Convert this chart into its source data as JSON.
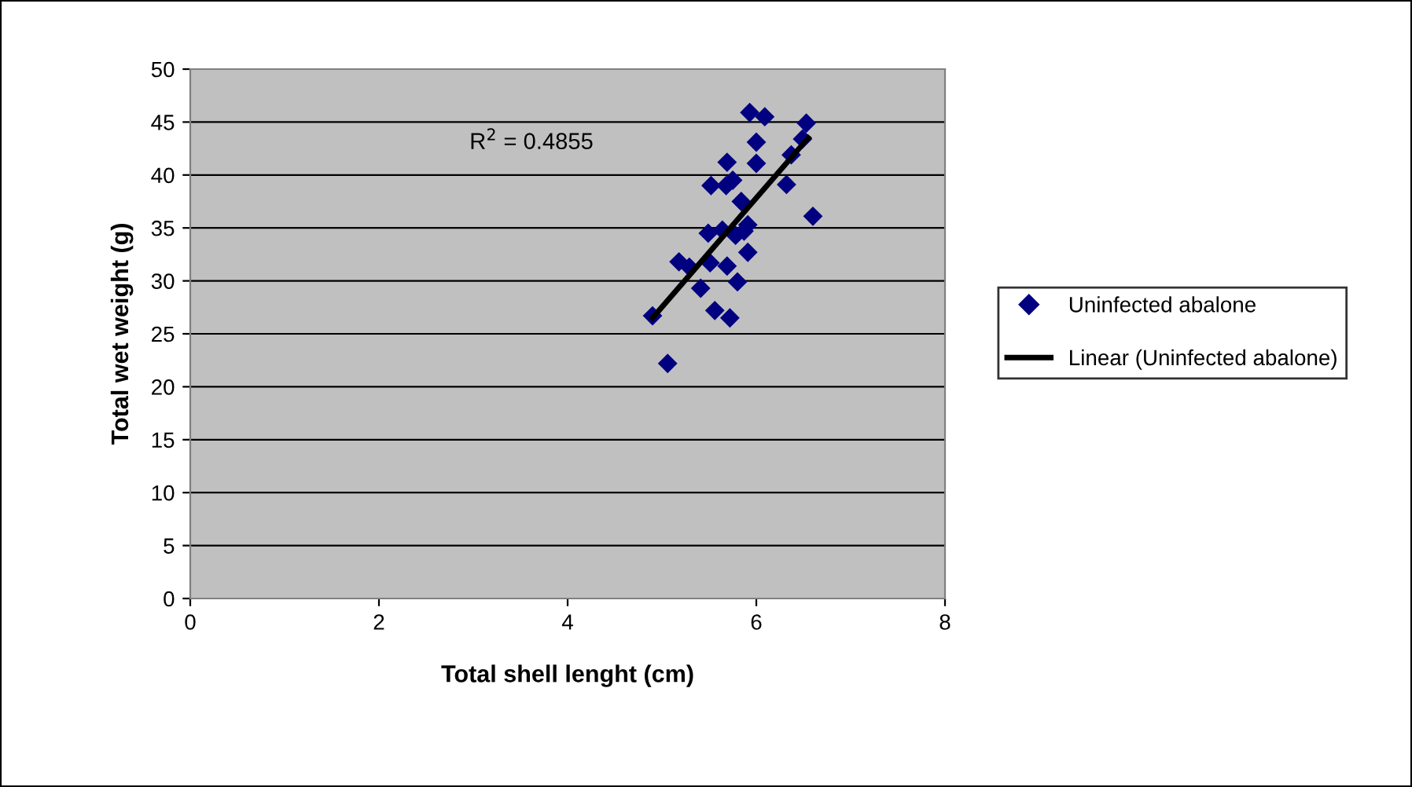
{
  "chart_data": {
    "type": "scatter",
    "xlabel": "Total shell lenght (cm)",
    "ylabel": "Total wet weight (g)",
    "xlim": [
      0,
      8
    ],
    "xticks": [
      0,
      2,
      4,
      6,
      8
    ],
    "ylim": [
      0,
      50
    ],
    "yticks": [
      0,
      5,
      10,
      15,
      20,
      25,
      30,
      35,
      40,
      45,
      50
    ],
    "grid": "y",
    "legend": "right",
    "marker": "diamond",
    "annotations": [
      "R$^{2}$ = 0.4855"
    ],
    "series": [
      {
        "name": "Uninfected abalone",
        "color": "#000080",
        "x": [
          4.9,
          5.06,
          5.18,
          5.29,
          5.41,
          5.51,
          5.56,
          5.72,
          5.69,
          5.8,
          5.91,
          5.49,
          5.64,
          5.78,
          5.91,
          5.87,
          5.84,
          5.52,
          5.68,
          5.75,
          5.69,
          6.0,
          6.0,
          5.93,
          6.09,
          6.32,
          6.37,
          6.49,
          6.53,
          6.6
        ],
        "values": [
          26.7,
          22.2,
          31.8,
          31.3,
          29.3,
          31.7,
          27.2,
          26.5,
          31.4,
          29.9,
          32.7,
          34.5,
          34.8,
          34.3,
          35.3,
          34.7,
          37.5,
          39.0,
          39.0,
          39.5,
          41.2,
          41.1,
          43.1,
          45.9,
          45.5,
          39.1,
          41.9,
          43.4,
          44.9,
          36.1
        ]
      },
      {
        "name": "Linear (Uninfected abalone)",
        "color": "#000000",
        "type": "line",
        "line_style": "solid",
        "marker": "none",
        "x": [
          4.9,
          6.55
        ],
        "values": [
          26.5,
          43.5
        ]
      }
    ]
  }
}
